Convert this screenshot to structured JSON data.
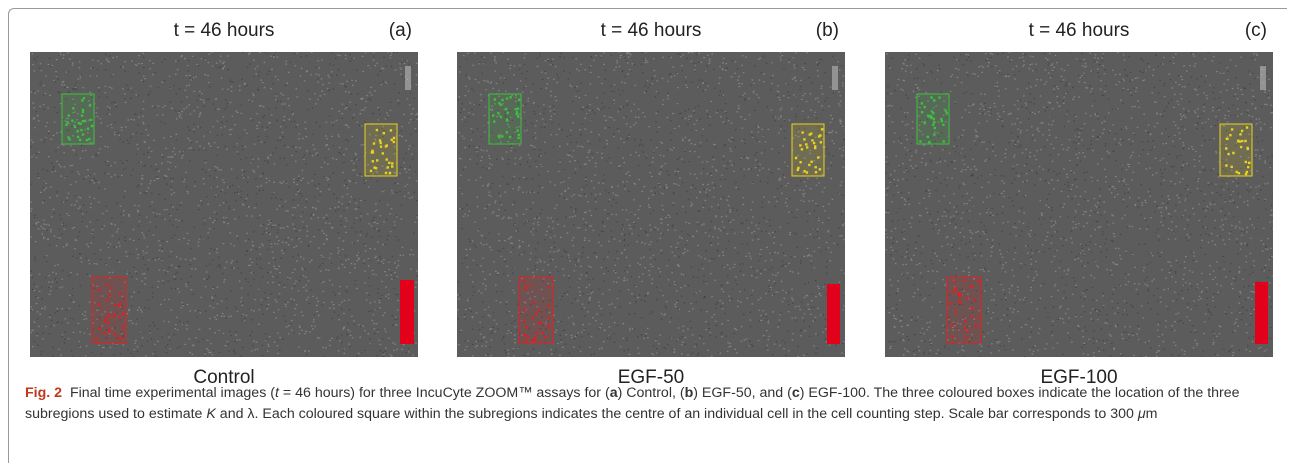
{
  "panels": [
    {
      "title": "t = 46 hours",
      "letter": "(a)",
      "caption": "Control"
    },
    {
      "title": "t = 46 hours",
      "letter": "(b)",
      "caption": "EGF-50"
    },
    {
      "title": "t = 46 hours",
      "letter": "(c)",
      "caption": "EGF-100"
    }
  ],
  "caption": {
    "label": "Fig. 2",
    "p1": "Final time experimental images (",
    "t": "t",
    "p2": " = 46 hours) for three IncuCyte ZOOM™ assays for (",
    "a": "a",
    "p3": ") Control, (",
    "b": "b",
    "p4": ") EGF-50, and (",
    "c": "c",
    "p5": ") EGF-100. The three coloured boxes indicate the location of the three subregions used to estimate ",
    "K": "K",
    "p6": " and λ. Each coloured square within the subregions indicates the centre of an individual cell in the cell counting step. Scale bar corresponds to 300 ",
    "mu": "μ",
    "p7": "m"
  },
  "colors": {
    "green_box": "#3fbf3f",
    "yellow_box": "#e8d21e",
    "red_box": "#e02020",
    "scale_bar": "#e3001b",
    "caption_label": "#c0391b"
  }
}
